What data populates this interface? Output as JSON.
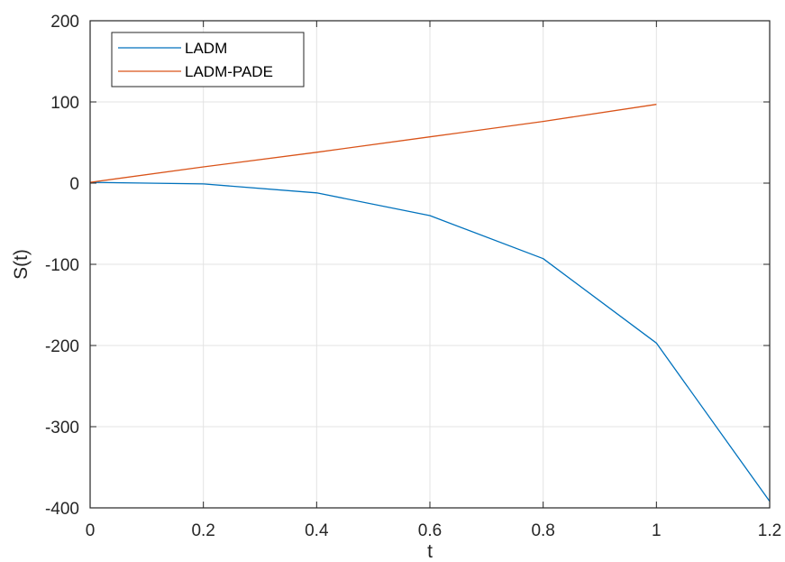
{
  "chart_data": {
    "type": "line",
    "xlabel": "t",
    "ylabel": "S(t)",
    "xlim": [
      0,
      1.2
    ],
    "ylim": [
      -400,
      200
    ],
    "xticks": [
      0,
      0.2,
      0.4,
      0.6,
      0.8,
      1,
      1.2
    ],
    "yticks": [
      -400,
      -300,
      -200,
      -100,
      0,
      100,
      200
    ],
    "xtick_labels": [
      "0",
      "0.2",
      "0.4",
      "0.6",
      "0.8",
      "1",
      "1.2"
    ],
    "ytick_labels": [
      "-400",
      "-300",
      "-200",
      "-100",
      "0",
      "100",
      "200"
    ],
    "grid": true,
    "legend_position": "top-left",
    "series": [
      {
        "name": "LADM",
        "color": "#0072BD",
        "x": [
          0,
          0.2,
          0.4,
          0.6,
          0.8,
          1.0,
          1.2
        ],
        "y": [
          1,
          -1,
          -12,
          -40,
          -93,
          -197,
          -392
        ]
      },
      {
        "name": "LADM-PADE",
        "color": "#D95319",
        "x": [
          0,
          0.2,
          0.4,
          0.6,
          0.8,
          1.0
        ],
        "y": [
          1,
          20,
          38,
          57,
          76,
          97
        ]
      }
    ]
  }
}
